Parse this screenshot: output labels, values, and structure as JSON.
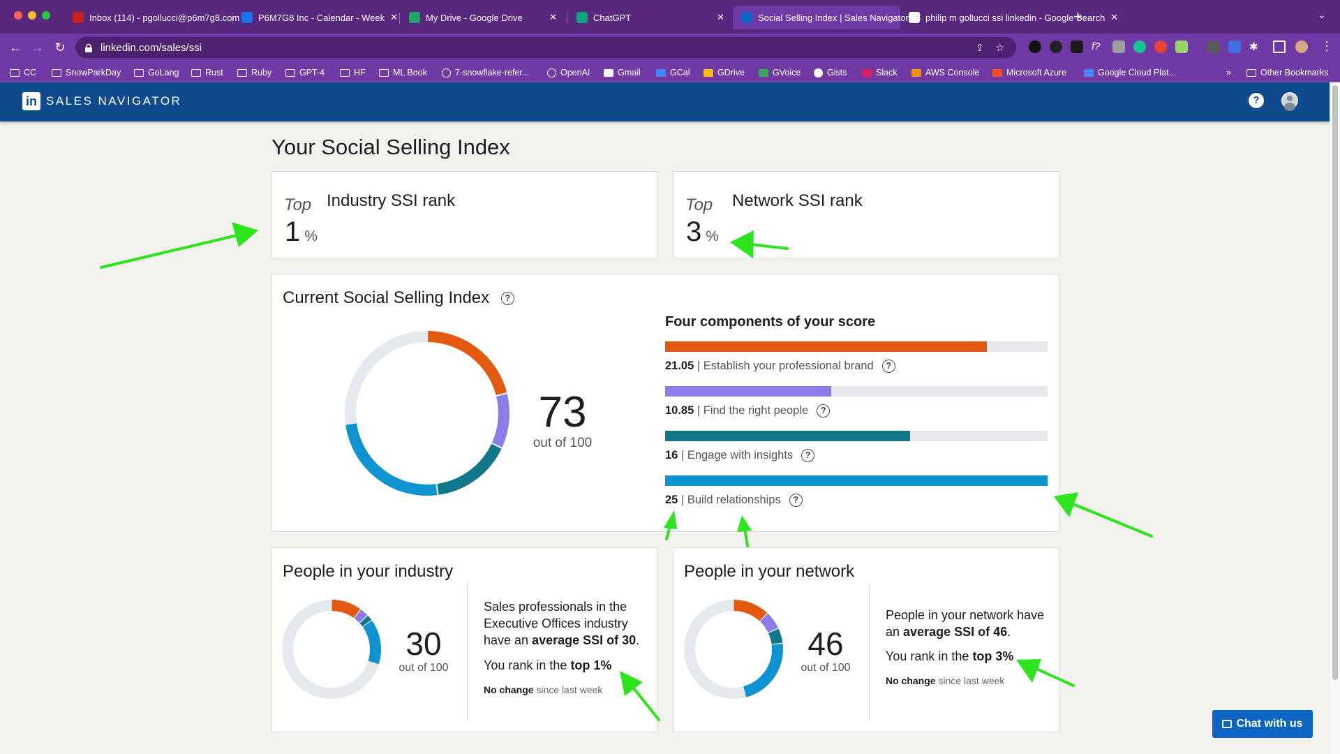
{
  "browser": {
    "tabs": [
      {
        "title": "Inbox (114) - pgollucci@p6m7g8.com",
        "active": false,
        "fav_color": "#c5221f"
      },
      {
        "title": "P6M7G8 Inc - Calendar - Week",
        "active": false,
        "fav_color": "#1a73e8"
      },
      {
        "title": "My Drive - Google Drive",
        "active": false,
        "fav_color": "#1fa463"
      },
      {
        "title": "ChatGPT",
        "active": false,
        "fav_color": "#10a37f"
      },
      {
        "title": "Social Selling Index | Sales Navigator",
        "active": true,
        "fav_color": "#0a66c2"
      },
      {
        "title": "philip m gollucci ssi linkedin - Google Search",
        "active": false,
        "fav_color": "#ffffff"
      }
    ],
    "new_tab_glyph": "+",
    "url": "linkedin.com/sales/ssi",
    "bookmarks": [
      {
        "label": "CC",
        "icon": "folder"
      },
      {
        "label": "SnowParkDay",
        "icon": "folder"
      },
      {
        "label": "GoLang",
        "icon": "folder"
      },
      {
        "label": "Rust",
        "icon": "folder"
      },
      {
        "label": "Ruby",
        "icon": "folder"
      },
      {
        "label": "GPT-4",
        "icon": "folder"
      },
      {
        "label": "HF",
        "icon": "folder"
      },
      {
        "label": "ML Book",
        "icon": "folder"
      },
      {
        "label": "7-snowflake-refer...",
        "icon": "globe"
      },
      {
        "label": "OpenAI",
        "icon": "openai"
      },
      {
        "label": "Gmail",
        "icon": "gmail"
      },
      {
        "label": "GCal",
        "icon": "gcal"
      },
      {
        "label": "GDrive",
        "icon": "gdrive"
      },
      {
        "label": "GVoice",
        "icon": "gvoice"
      },
      {
        "label": "Gists",
        "icon": "github"
      },
      {
        "label": "Slack",
        "icon": "slack"
      },
      {
        "label": "AWS Console",
        "icon": "aws"
      },
      {
        "label": "Microsoft Azure",
        "icon": "azure"
      },
      {
        "label": "Google Cloud Plat...",
        "icon": "gcp"
      }
    ],
    "bookmarks_overflow": "»",
    "other_bookmarks": "Other Bookmarks"
  },
  "header": {
    "logo_text": "in",
    "product_name": "SALES NAVIGATOR",
    "help_glyph": "?"
  },
  "page": {
    "title": "Your Social Selling Index",
    "industry_rank": {
      "prefix": "Top",
      "label": "Industry SSI rank",
      "value": "1",
      "unit": "%"
    },
    "network_rank": {
      "prefix": "Top",
      "label": "Network SSI rank",
      "value": "3",
      "unit": "%"
    },
    "current": {
      "title": "Current Social Selling Index",
      "score": "73",
      "out_of": "out of 100",
      "components_title": "Four components of your score",
      "components": [
        {
          "value": "21.05",
          "label": "Establish your professional brand",
          "max": 25,
          "color": "#e2590f"
        },
        {
          "value": "10.85",
          "label": "Find the right people",
          "max": 25,
          "color": "#8a7de8"
        },
        {
          "value": "16",
          "label": "Engage with insights",
          "max": 25,
          "color": "#10788a"
        },
        {
          "value": "25",
          "label": "Build relationships",
          "max": 25,
          "color": "#0c93d0"
        }
      ]
    },
    "industry": {
      "title": "People in your industry",
      "score": "30",
      "out_of": "out of 100",
      "segments": [
        10,
        3,
        2,
        15
      ],
      "desc_pre": "Sales professionals in the Executive Offices industry have an ",
      "desc_bold": "average SSI of 30",
      "desc_post": ".",
      "rank_pre": "You rank in the ",
      "rank_bold": "top 1%",
      "change_bold": "No change",
      "change_rest": " since last week"
    },
    "network": {
      "title": "People in your network",
      "score": "46",
      "out_of": "out of 100",
      "segments": [
        12,
        6,
        5,
        23
      ],
      "desc_pre": "People in your network have an ",
      "desc_bold": "average SSI of 46",
      "desc_post": ".",
      "rank_pre": "You rank in the ",
      "rank_bold": "top 3%",
      "change_bold": "No change",
      "change_rest": " since last week"
    },
    "chat_button": "Chat with us"
  },
  "colors": {
    "brand": "#e2590f",
    "people": "#8a7de8",
    "insights": "#10788a",
    "relationships": "#0c93d0",
    "track": "#e5e9ee",
    "arrows": "#2de51c",
    "nav": "#0e4a8c"
  }
}
